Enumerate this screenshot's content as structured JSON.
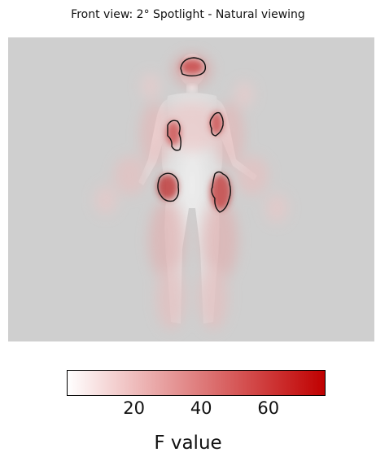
{
  "title": "Front view: 2° Spotlight - Natural viewing",
  "chart_data": {
    "type": "heatmap",
    "title": "Front view: 2° Spotlight - Natural viewing",
    "colorbar": {
      "label": "F value",
      "ticks": [
        20,
        40,
        60
      ],
      "range": [
        0,
        77
      ],
      "colors": [
        "#ffffff",
        "#c00000"
      ]
    },
    "clusters": [
      {
        "region": "head",
        "value": 62
      },
      {
        "region": "right-chest",
        "value": 58
      },
      {
        "region": "left-chest",
        "value": 55
      },
      {
        "region": "right-hip",
        "value": 66
      },
      {
        "region": "left-hip",
        "value": 60
      }
    ]
  },
  "colors": {
    "background": "#cfcfcf",
    "heat_low": "#ffffff",
    "heat_high": "#c00000",
    "outline": "#111111"
  }
}
